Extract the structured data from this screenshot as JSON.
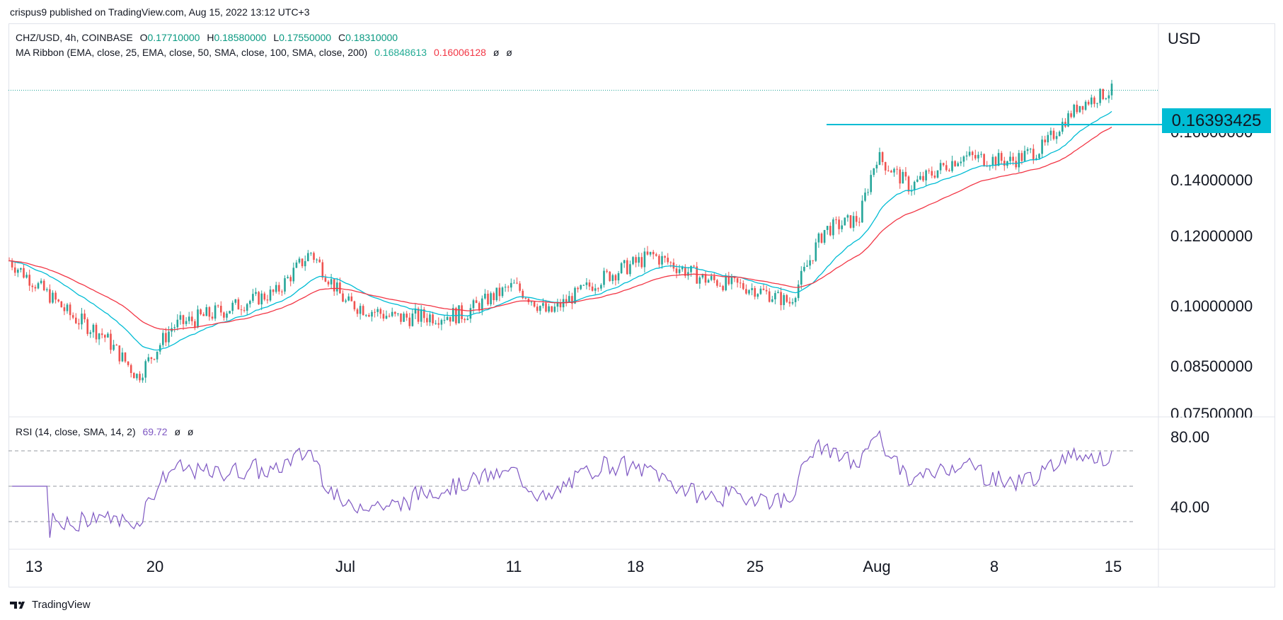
{
  "header": {
    "published": "crispus9 published on TradingView.com, Aug 15, 2022 13:12 UTC+3"
  },
  "legend": {
    "symbol": "CHZ/USD, 4h, COINBASE",
    "o_label": "O",
    "o": "0.17710000",
    "h_label": "H",
    "h": "0.18580000",
    "l_label": "L",
    "l": "0.17550000",
    "c_label": "C",
    "c": "0.18310000",
    "ribbon_label": "MA Ribbon (EMA, close, 25, EMA, close, 50, SMA, close, 100, SMA, close, 200)",
    "ribbon_v1": "0.16848613",
    "ribbon_v2": "0.16006128",
    "ribbon_null1": "ø",
    "ribbon_null2": "ø",
    "rsi_label": "RSI (14, close, SMA, 14, 2)",
    "rsi_value": "69.72",
    "rsi_null1": "ø",
    "rsi_null2": "ø"
  },
  "price_axis": {
    "currency": "USD",
    "highlight_price": "0.16393425",
    "tick_labels": [
      "0.16000000",
      "0.14000000",
      "0.12000000",
      "0.10000000",
      "0.08500000",
      "0.07500000"
    ]
  },
  "rsi_axis": {
    "tick_labels": [
      "80.00",
      "40.00"
    ]
  },
  "time_axis": {
    "tick_labels": [
      "13",
      "20",
      "Jul",
      "11",
      "18",
      "25",
      "Aug",
      "8",
      "15"
    ]
  },
  "brand": {
    "name": "TradingView"
  },
  "colors": {
    "up": "#26a69a",
    "down": "#ef5350",
    "ema25": "#00bcd4",
    "ema50": "#f23645",
    "rsi": "#7e57c2",
    "level": "#00bcd4"
  },
  "chart_data": {
    "type": "candlestick",
    "symbol": "CHZ/USD",
    "interval": "4h",
    "exchange": "COINBASE",
    "price_ticks": [
      0.16,
      0.14,
      0.12,
      0.1,
      0.085,
      0.075
    ],
    "horizontal_level": 0.16393425,
    "last_close": 0.1831,
    "rsi_levels": [
      70,
      50,
      30
    ],
    "rsi_ticks": [
      80,
      40
    ],
    "rsi_last": 69.72,
    "time_ticks": [
      "13",
      "20",
      "Jul",
      "11",
      "18",
      "25",
      "Aug",
      "8",
      "15"
    ],
    "close_series": [
      {
        "date": "Jun 13",
        "close": 0.107
      },
      {
        "date": "Jun 15",
        "close": 0.098
      },
      {
        "date": "Jun 17",
        "close": 0.093
      },
      {
        "date": "Jun 19",
        "close": 0.083
      },
      {
        "date": "Jun 21",
        "close": 0.095
      },
      {
        "date": "Jun 24",
        "close": 0.099
      },
      {
        "date": "Jun 27",
        "close": 0.104
      },
      {
        "date": "Jun 29",
        "close": 0.116
      },
      {
        "date": "Jul 1",
        "close": 0.101
      },
      {
        "date": "Jul 4",
        "close": 0.097
      },
      {
        "date": "Jul 8",
        "close": 0.098
      },
      {
        "date": "Jul 11",
        "close": 0.106
      },
      {
        "date": "Jul 13",
        "close": 0.098
      },
      {
        "date": "Jul 16",
        "close": 0.108
      },
      {
        "date": "Jul 19",
        "close": 0.115
      },
      {
        "date": "Jul 22",
        "close": 0.108
      },
      {
        "date": "Jul 25",
        "close": 0.105
      },
      {
        "date": "Jul 27",
        "close": 0.101
      },
      {
        "date": "Jul 29",
        "close": 0.123
      },
      {
        "date": "Jul 31",
        "close": 0.127
      },
      {
        "date": "Aug 1",
        "close": 0.15
      },
      {
        "date": "Aug 3",
        "close": 0.138
      },
      {
        "date": "Aug 6",
        "close": 0.15
      },
      {
        "date": "Aug 9",
        "close": 0.148
      },
      {
        "date": "Aug 11",
        "close": 0.154
      },
      {
        "date": "Aug 13",
        "close": 0.175
      },
      {
        "date": "Aug 15",
        "close": 0.1831
      }
    ]
  }
}
